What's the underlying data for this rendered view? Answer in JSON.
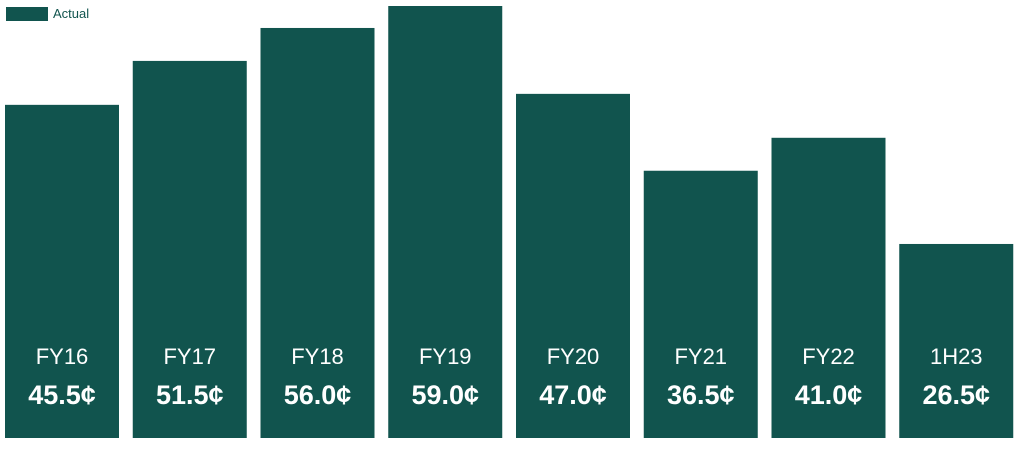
{
  "chart_data": {
    "type": "bar",
    "categories": [
      "FY16",
      "FY17",
      "FY18",
      "FY19",
      "FY20",
      "FY21",
      "FY22",
      "1H23"
    ],
    "values": [
      45.5,
      51.5,
      56.0,
      59.0,
      47.0,
      36.5,
      41.0,
      26.5
    ],
    "value_labels": [
      "45.5¢",
      "51.5¢",
      "56.0¢",
      "59.0¢",
      "47.0¢",
      "36.5¢",
      "41.0¢",
      "26.5¢"
    ],
    "series": [
      {
        "name": "Actual"
      }
    ],
    "legend_position": "top-left",
    "ylim": [
      0,
      59.0
    ],
    "grid": false,
    "colors": {
      "bar": "#11544e",
      "label_text": "#ffffff",
      "legend_text": "#11544e"
    }
  }
}
